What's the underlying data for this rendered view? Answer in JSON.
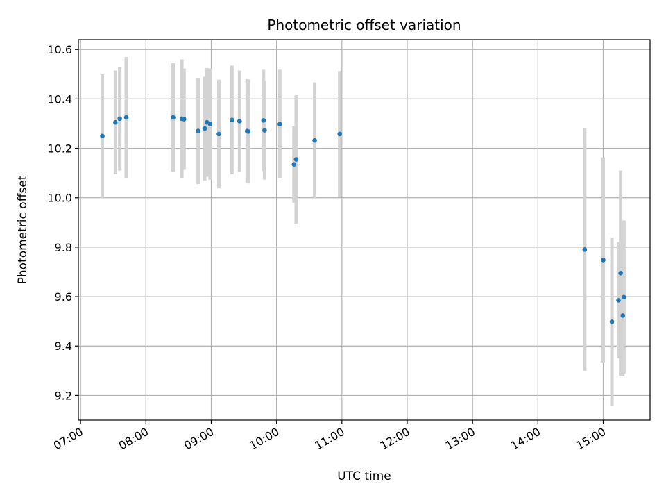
{
  "chart_data": {
    "type": "scatter",
    "title": "Photometric offset variation",
    "xlabel": "UTC time",
    "ylabel": "Photometric offset",
    "x_tick_labels": [
      "07:00",
      "08:00",
      "09:00",
      "10:00",
      "11:00",
      "12:00",
      "13:00",
      "14:00",
      "15:00"
    ],
    "y_tick_labels": [
      "9.2",
      "9.4",
      "9.6",
      "9.8",
      "10.0",
      "10.2",
      "10.4",
      "10.6"
    ],
    "xlim": [
      "06:58",
      "15:43"
    ],
    "ylim": [
      9.1,
      10.64
    ],
    "grid": true,
    "colors": {
      "points": "#1f77b4",
      "errorbars": "#d3d3d3",
      "grid": "#b0b0b0"
    },
    "points": [
      {
        "x": "07:20",
        "y": 10.25,
        "yerr": 0.25
      },
      {
        "x": "07:32",
        "y": 10.305,
        "yerr": 0.21
      },
      {
        "x": "07:36",
        "y": 10.32,
        "yerr": 0.21
      },
      {
        "x": "07:42",
        "y": 10.325,
        "yerr": 0.245
      },
      {
        "x": "08:25",
        "y": 10.325,
        "yerr": 0.22
      },
      {
        "x": "08:33",
        "y": 10.32,
        "yerr": 0.24
      },
      {
        "x": "08:35",
        "y": 10.318,
        "yerr": 0.205
      },
      {
        "x": "08:48",
        "y": 10.27,
        "yerr": 0.215
      },
      {
        "x": "08:54",
        "y": 10.28,
        "yerr": 0.21
      },
      {
        "x": "08:56",
        "y": 10.305,
        "yerr": 0.22
      },
      {
        "x": "08:59",
        "y": 10.298,
        "yerr": 0.225
      },
      {
        "x": "09:07",
        "y": 10.258,
        "yerr": 0.22
      },
      {
        "x": "09:19",
        "y": 10.315,
        "yerr": 0.22
      },
      {
        "x": "09:26",
        "y": 10.31,
        "yerr": 0.205
      },
      {
        "x": "09:33",
        "y": 10.27,
        "yerr": 0.21
      },
      {
        "x": "09:34",
        "y": 10.268,
        "yerr": 0.21
      },
      {
        "x": "09:48",
        "y": 10.313,
        "yerr": 0.205
      },
      {
        "x": "09:49",
        "y": 10.273,
        "yerr": 0.2
      },
      {
        "x": "10:03",
        "y": 10.298,
        "yerr": 0.22
      },
      {
        "x": "10:16",
        "y": 10.135,
        "yerr": 0.155
      },
      {
        "x": "10:18",
        "y": 10.155,
        "yerr": 0.26
      },
      {
        "x": "10:35",
        "y": 10.232,
        "yerr": 0.235
      },
      {
        "x": "10:58",
        "y": 10.258,
        "yerr": 0.255
      },
      {
        "x": "14:43",
        "y": 9.79,
        "yerr": 0.49
      },
      {
        "x": "15:00",
        "y": 9.748,
        "yerr": 0.415
      },
      {
        "x": "15:08",
        "y": 9.498,
        "yerr": 0.34
      },
      {
        "x": "15:14",
        "y": 9.585,
        "yerr": 0.235
      },
      {
        "x": "15:16",
        "y": 9.695,
        "yerr": 0.415
      },
      {
        "x": "15:18",
        "y": 9.523,
        "yerr": 0.245
      },
      {
        "x": "15:19",
        "y": 9.598,
        "yerr": 0.31
      }
    ]
  }
}
